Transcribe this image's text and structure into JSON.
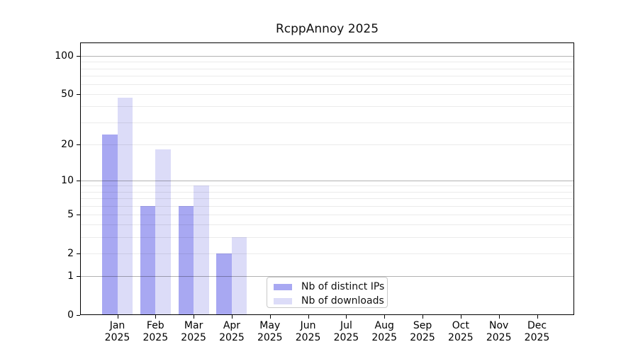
{
  "title": "RcppAnnoy 2025",
  "chart_data": {
    "type": "bar",
    "title": "RcppAnnoy 2025",
    "categories": [
      "Jan",
      "Feb",
      "Mar",
      "Apr",
      "May",
      "Jun",
      "Jul",
      "Aug",
      "Sep",
      "Oct",
      "Nov",
      "Dec"
    ],
    "year_label": "2025",
    "series": [
      {
        "name": "Nb of distinct IPs",
        "color": "#a8a8f2",
        "values": [
          24,
          6,
          6,
          2,
          0,
          0,
          0,
          0,
          0,
          0,
          0,
          0
        ]
      },
      {
        "name": "Nb of downloads",
        "color": "#dcdcf8",
        "values": [
          47,
          18,
          9,
          3,
          0,
          0,
          0,
          0,
          0,
          0,
          0,
          0
        ]
      }
    ],
    "yscale": "log1p",
    "ylim": [
      0,
      100
    ],
    "yticks": [
      100,
      50,
      20,
      10,
      5,
      2,
      1,
      0
    ],
    "grid_major_values": [
      100,
      10,
      1
    ],
    "grid_minor_values": [
      90,
      80,
      70,
      60,
      50,
      40,
      30,
      20,
      9,
      8,
      7,
      6,
      5,
      4,
      3,
      2
    ],
    "grid_on": true,
    "legend_position": "lower center-left",
    "colors": {
      "axis": "#000000",
      "grid_major": "rgba(0,0,0,0.30)",
      "grid_minor": "rgba(0,0,0,0.08)",
      "text": "#111111"
    }
  }
}
